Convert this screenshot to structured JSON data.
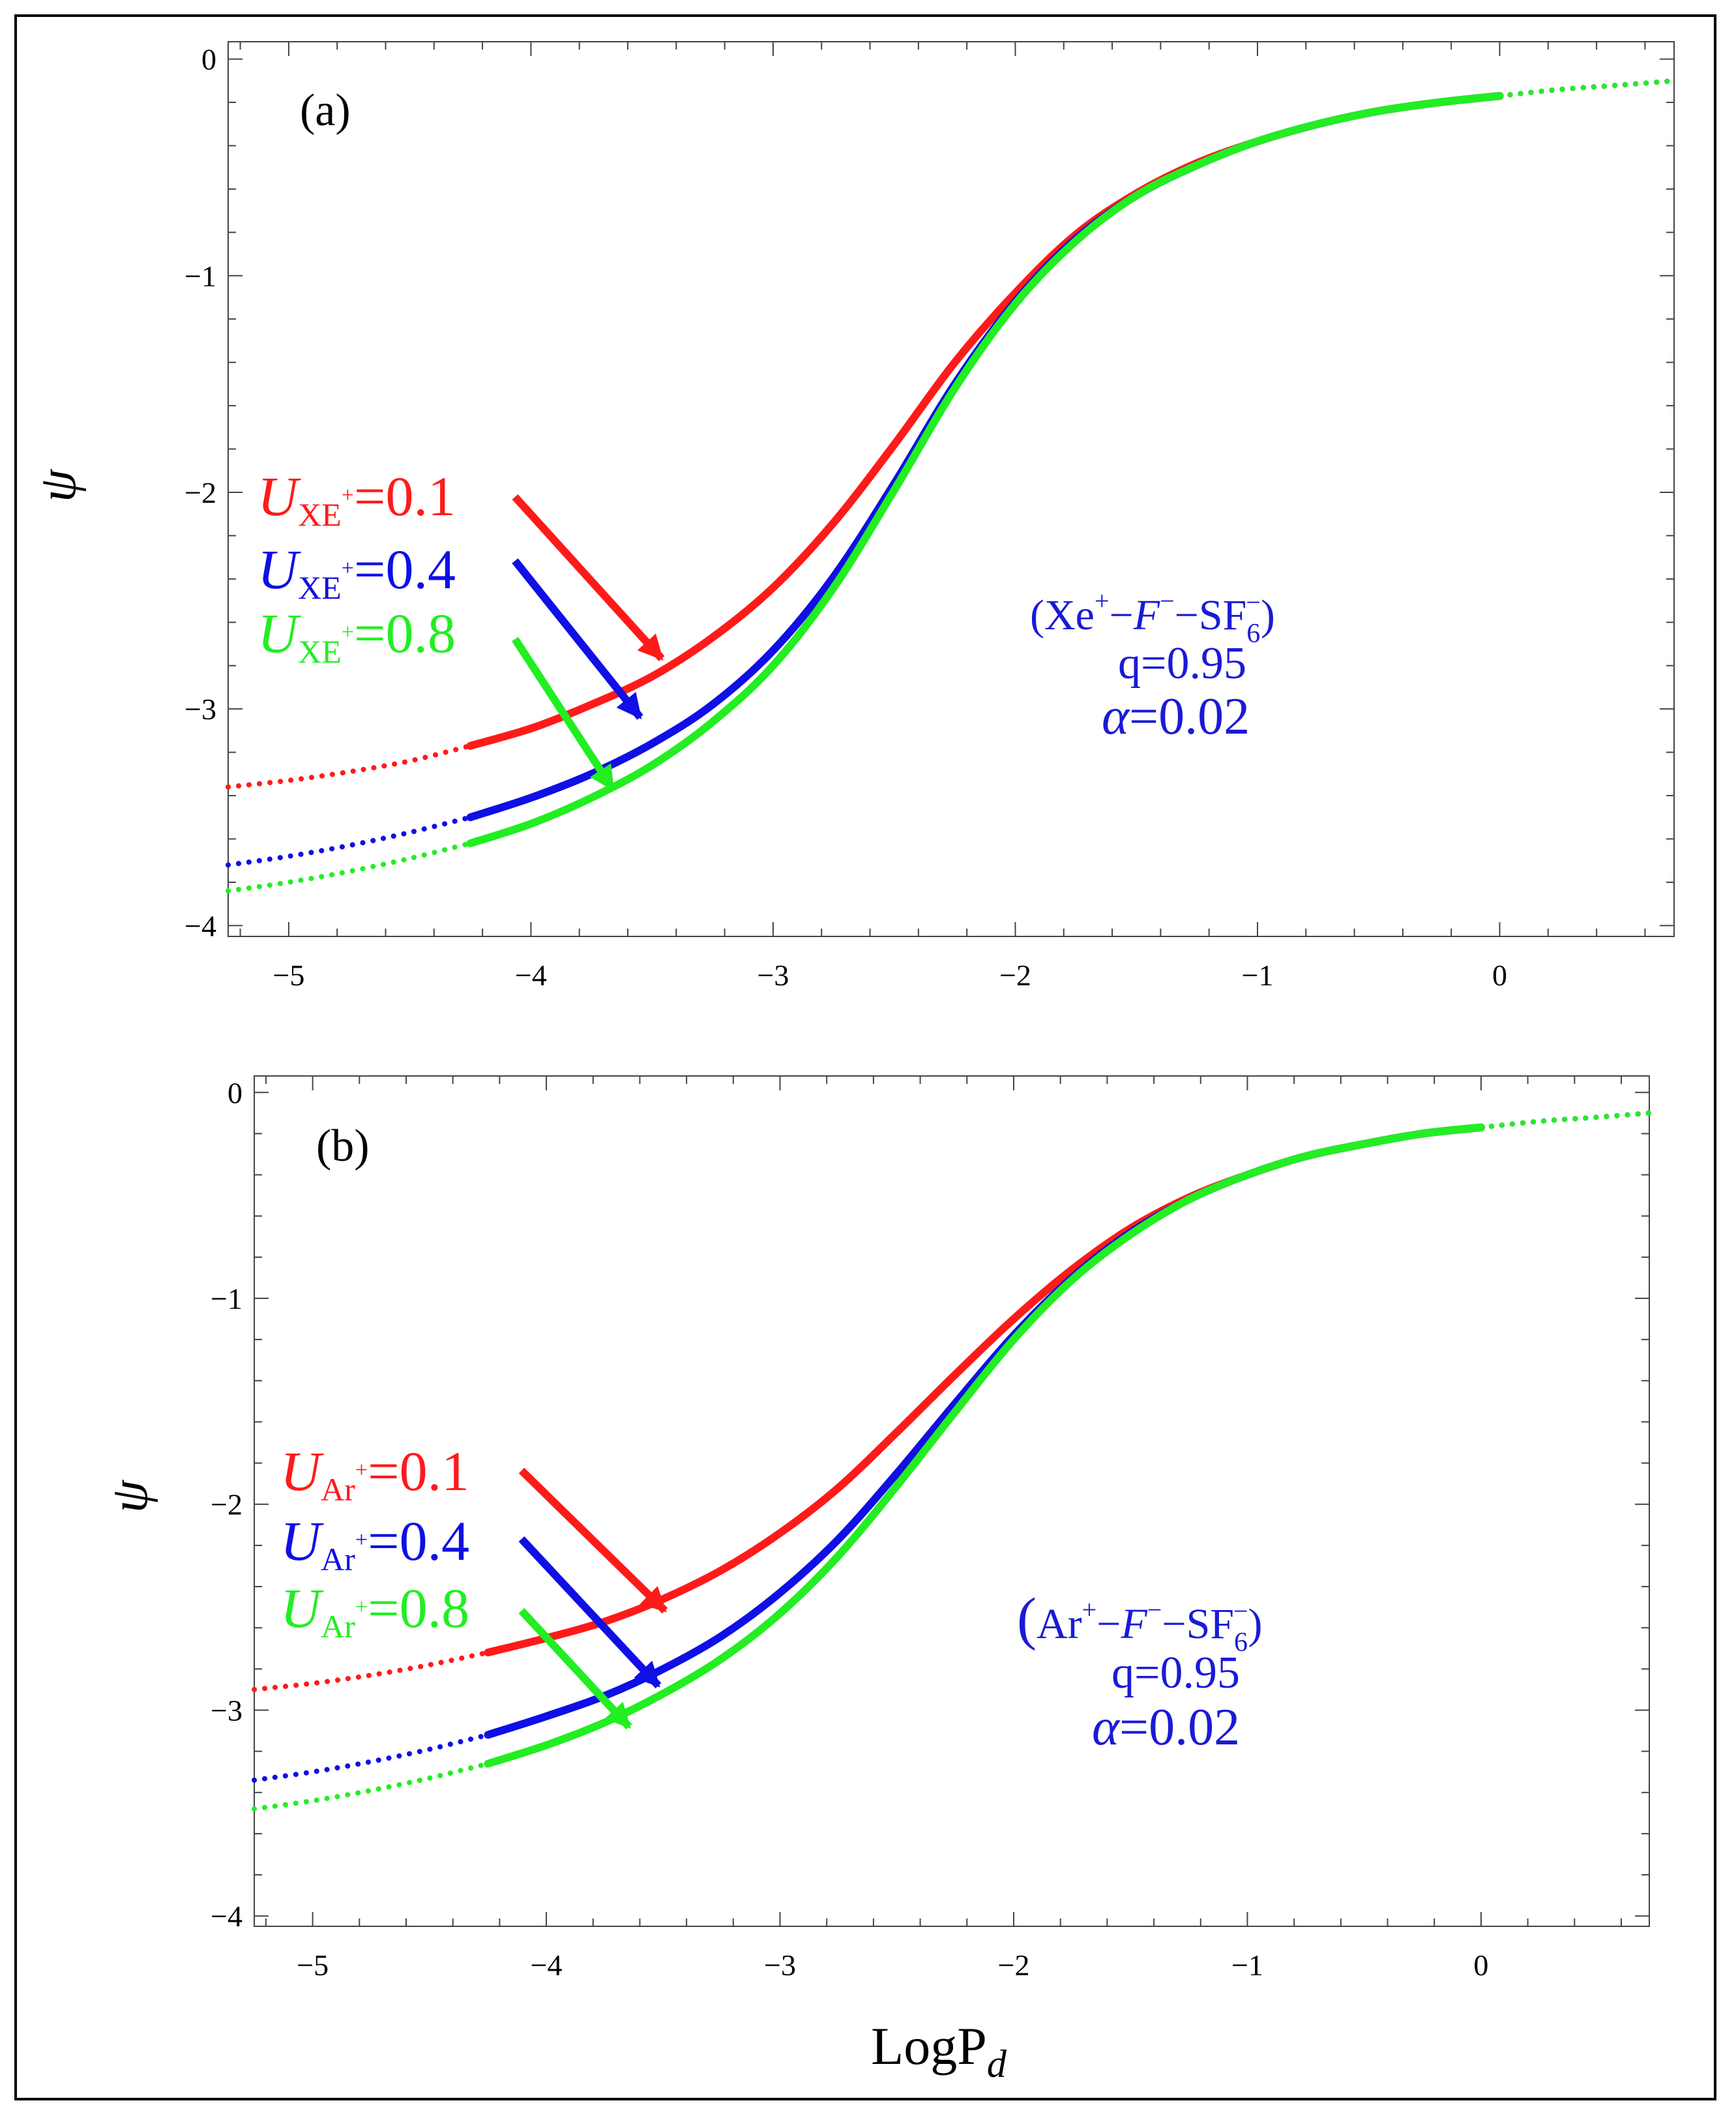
{
  "figure": {
    "xlabel_main": "LogP",
    "xlabel_sub": "d",
    "ylabel": "ψ"
  },
  "colors": {
    "red": "#ff1a1a",
    "blue": "#0f0fe6",
    "green": "#22ee22",
    "axis": "#444444"
  },
  "chart_data": [
    {
      "type": "line",
      "panel_label": "(a)",
      "title": "",
      "xlabel": "LogPd",
      "ylabel": "ψ",
      "xlim": [
        -5.25,
        0.72
      ],
      "ylim": [
        -4.05,
        0.08
      ],
      "xticks": [
        -5,
        -4,
        -3,
        -2,
        -1,
        0
      ],
      "xtick_labels": [
        "−5",
        "−4",
        "−3",
        "−2",
        "−1",
        "0"
      ],
      "yticks": [
        0,
        -1,
        -2,
        -3,
        -4
      ],
      "ytick_labels": [
        "0",
        "−1",
        "−2",
        "−3",
        "−4"
      ],
      "x": [
        -5.25,
        -5.0,
        -4.75,
        -4.5,
        -4.25,
        -4.0,
        -3.75,
        -3.5,
        -3.25,
        -3.0,
        -2.75,
        -2.5,
        -2.25,
        -2.0,
        -1.75,
        -1.5,
        -1.25,
        -1.0,
        -0.75,
        -0.5,
        -0.25,
        0.0,
        0.25,
        0.5,
        0.72
      ],
      "series": [
        {
          "name": "U_XE+=0.1",
          "color": "red",
          "values": [
            -3.36,
            -3.33,
            -3.29,
            -3.24,
            -3.17,
            -3.09,
            -2.98,
            -2.85,
            -2.67,
            -2.44,
            -2.14,
            -1.78,
            -1.4,
            -1.08,
            -0.81,
            -0.62,
            -0.48,
            -0.38,
            -0.3,
            -0.24,
            -0.2,
            -0.17,
            -0.14,
            -0.12,
            -0.1
          ]
        },
        {
          "name": "U_XE+=0.4",
          "color": "blue",
          "values": [
            -3.72,
            -3.68,
            -3.63,
            -3.57,
            -3.5,
            -3.41,
            -3.3,
            -3.16,
            -2.98,
            -2.73,
            -2.39,
            -1.96,
            -1.5,
            -1.12,
            -0.83,
            -0.63,
            -0.49,
            -0.38,
            -0.3,
            -0.24,
            -0.2,
            -0.17,
            -0.14,
            -0.12,
            -0.1
          ]
        },
        {
          "name": "U_XE+=0.8",
          "color": "green",
          "values": [
            -3.84,
            -3.8,
            -3.75,
            -3.69,
            -3.62,
            -3.53,
            -3.41,
            -3.26,
            -3.06,
            -2.8,
            -2.44,
            -1.99,
            -1.52,
            -1.13,
            -0.84,
            -0.63,
            -0.49,
            -0.38,
            -0.3,
            -0.24,
            -0.2,
            -0.17,
            -0.14,
            -0.12,
            -0.1
          ]
        }
      ],
      "legend": {
        "symbol": "U",
        "subscript": "XE",
        "superscript": "+",
        "entries": [
          {
            "value": "=0.1",
            "color": "red"
          },
          {
            "value": "=0.4",
            "color": "blue"
          },
          {
            "value": "=0.8",
            "color": "green"
          }
        ]
      },
      "annotation": {
        "open": "(",
        "ion": "Xe",
        "ion_sup": "+",
        "dash1": "−",
        "neg_ion": "F",
        "neg_ion_sup": "−",
        "dash2": "−",
        "molecule": "SF",
        "molecule_sub": "6",
        "molecule_sup": "−",
        "close": ")",
        "q_line": "q=0.95",
        "alpha_symbol": "α",
        "alpha_value": "=0.02"
      }
    },
    {
      "type": "line",
      "panel_label": "(b)",
      "title": "",
      "xlabel": "LogPd",
      "ylabel": "ψ",
      "xlim": [
        -5.25,
        0.72
      ],
      "ylim": [
        -4.05,
        0.08
      ],
      "xticks": [
        -5,
        -4,
        -3,
        -2,
        -1,
        0
      ],
      "xtick_labels": [
        "−5",
        "−4",
        "−3",
        "−2",
        "−1",
        "0"
      ],
      "yticks": [
        0,
        -1,
        -2,
        -3,
        -4
      ],
      "ytick_labels": [
        "0",
        "−1",
        "−2",
        "−3",
        "−4"
      ],
      "x": [
        -5.25,
        -5.0,
        -4.75,
        -4.5,
        -4.25,
        -4.0,
        -3.75,
        -3.5,
        -3.25,
        -3.0,
        -2.75,
        -2.5,
        -2.25,
        -2.0,
        -1.75,
        -1.5,
        -1.25,
        -1.0,
        -0.75,
        -0.5,
        -0.25,
        0.0,
        0.25,
        0.5,
        0.72
      ],
      "series": [
        {
          "name": "U_Ar+=0.1",
          "color": "red",
          "values": [
            -2.9,
            -2.87,
            -2.83,
            -2.78,
            -2.72,
            -2.65,
            -2.57,
            -2.46,
            -2.32,
            -2.14,
            -1.92,
            -1.65,
            -1.37,
            -1.1,
            -0.86,
            -0.66,
            -0.51,
            -0.4,
            -0.31,
            -0.25,
            -0.2,
            -0.17,
            -0.14,
            -0.12,
            -0.1
          ]
        },
        {
          "name": "U_Ar+=0.4",
          "color": "blue",
          "values": [
            -3.34,
            -3.3,
            -3.25,
            -3.19,
            -3.12,
            -3.03,
            -2.93,
            -2.8,
            -2.64,
            -2.43,
            -2.17,
            -1.85,
            -1.51,
            -1.18,
            -0.9,
            -0.68,
            -0.52,
            -0.4,
            -0.31,
            -0.25,
            -0.2,
            -0.17,
            -0.14,
            -0.12,
            -0.1
          ]
        },
        {
          "name": "U_Ar+=0.8",
          "color": "green",
          "values": [
            -3.48,
            -3.44,
            -3.39,
            -3.33,
            -3.26,
            -3.17,
            -3.06,
            -2.92,
            -2.75,
            -2.53,
            -2.25,
            -1.91,
            -1.55,
            -1.2,
            -0.91,
            -0.69,
            -0.52,
            -0.4,
            -0.31,
            -0.25,
            -0.2,
            -0.17,
            -0.14,
            -0.12,
            -0.1
          ]
        }
      ],
      "legend": {
        "symbol": "U",
        "subscript": "Ar",
        "superscript": "+",
        "entries": [
          {
            "value": "=0.1",
            "color": "red"
          },
          {
            "value": "=0.4",
            "color": "blue"
          },
          {
            "value": "=0.8",
            "color": "green"
          }
        ]
      },
      "annotation": {
        "open": "(",
        "ion": "Ar",
        "ion_sup": "+",
        "dash1": "−",
        "neg_ion": "F",
        "neg_ion_sup": "−",
        "dash2": "−",
        "molecule": "SF",
        "molecule_sub": "6",
        "molecule_sup": "−",
        "close": ")",
        "q_line": "q=0.95",
        "alpha_symbol": "α",
        "alpha_value": "=0.02"
      }
    }
  ]
}
